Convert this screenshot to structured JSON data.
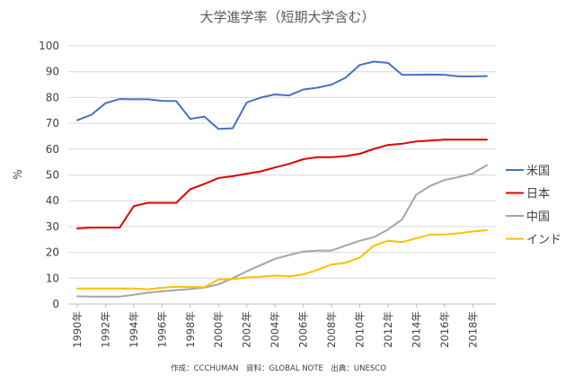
{
  "chart_data": {
    "type": "line",
    "title": "大学進学率（短期大学含む）",
    "xlabel": "",
    "ylabel": "%",
    "ylim": [
      0,
      100
    ],
    "yticks": [
      0,
      10,
      20,
      30,
      40,
      50,
      60,
      70,
      80,
      90,
      100
    ],
    "grid": true,
    "legend_position": "right",
    "x": [
      1990,
      1991,
      1992,
      1993,
      1994,
      1995,
      1996,
      1997,
      1998,
      1999,
      2000,
      2001,
      2002,
      2003,
      2004,
      2005,
      2006,
      2007,
      2008,
      2009,
      2010,
      2011,
      2012,
      2013,
      2014,
      2015,
      2016,
      2017,
      2018,
      2019
    ],
    "x_tick_labels": [
      "1990年",
      "1992年",
      "1994年",
      "1996年",
      "1998年",
      "2000年",
      "2002年",
      "2004年",
      "2006年",
      "2008年",
      "2010年",
      "2012年",
      "2014年",
      "2016年",
      "2018年"
    ],
    "series": [
      {
        "name": "米国",
        "color": "#4472c4",
        "values": [
          71.2,
          73.3,
          77.8,
          79.4,
          79.3,
          79.3,
          78.7,
          78.6,
          71.7,
          72.6,
          67.8,
          68.1,
          78.1,
          80.0,
          81.2,
          80.8,
          83.1,
          83.8,
          85.0,
          87.7,
          92.6,
          93.9,
          93.4,
          88.8,
          88.8,
          88.9,
          88.8,
          88.2,
          88.2,
          88.3
        ]
      },
      {
        "name": "日本",
        "color": "#e00000",
        "values": [
          29.3,
          29.6,
          29.6,
          29.6,
          37.9,
          39.2,
          39.2,
          39.2,
          44.5,
          46.5,
          48.8,
          49.5,
          50.5,
          51.4,
          52.9,
          54.3,
          56.1,
          56.9,
          56.9,
          57.3,
          58.2,
          60.1,
          61.6,
          62.1,
          63.0,
          63.3,
          63.7,
          63.7,
          63.7,
          63.7
        ]
      },
      {
        "name": "中国",
        "color": "#a5a5a5",
        "values": [
          3.0,
          2.9,
          2.9,
          2.9,
          3.6,
          4.4,
          4.9,
          5.4,
          5.8,
          6.4,
          7.6,
          10.0,
          12.7,
          15.1,
          17.5,
          19.0,
          20.3,
          20.7,
          20.7,
          22.7,
          24.5,
          25.9,
          28.9,
          32.8,
          42.4,
          45.8,
          48.0,
          49.2,
          50.6,
          53.8
        ]
      },
      {
        "name": "インド",
        "color": "#ffc000",
        "values": [
          6.0,
          6.0,
          6.0,
          6.0,
          6.0,
          5.7,
          6.3,
          6.7,
          6.6,
          6.5,
          9.5,
          9.6,
          10.3,
          10.6,
          11.0,
          10.7,
          11.5,
          13.2,
          15.3,
          16.0,
          18.0,
          22.6,
          24.5,
          24.0,
          25.5,
          26.9,
          26.9,
          27.4,
          28.1,
          28.6
        ]
      }
    ],
    "source_note": "作成：CCCHUMAN　資料：GLOBAL NOTE　出典：UNESCO"
  }
}
